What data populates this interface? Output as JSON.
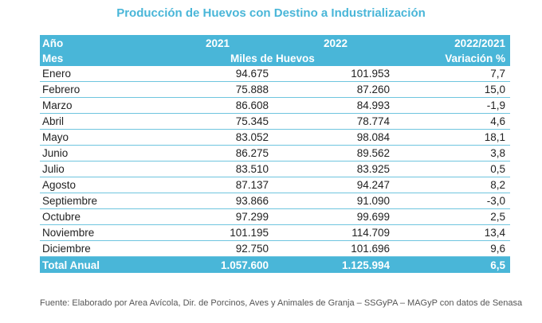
{
  "title": "Producción de Huevos con Destino a Industrialización",
  "header": {
    "row1": [
      "Año",
      "2021",
      "2022",
      "2022/2021"
    ],
    "row2": {
      "mes": "Mes",
      "unidad": "Miles de Huevos",
      "variacion": "Variación %"
    }
  },
  "rows": [
    {
      "mes": "Enero",
      "v2021": "94.675",
      "v2022": "101.953",
      "var": "7,7"
    },
    {
      "mes": "Febrero",
      "v2021": "75.888",
      "v2022": "87.260",
      "var": "15,0"
    },
    {
      "mes": "Marzo",
      "v2021": "86.608",
      "v2022": "84.993",
      "var": "-1,9"
    },
    {
      "mes": "Abril",
      "v2021": "75.345",
      "v2022": "78.774",
      "var": "4,6"
    },
    {
      "mes": "Mayo",
      "v2021": "83.052",
      "v2022": "98.084",
      "var": "18,1"
    },
    {
      "mes": "Junio",
      "v2021": "86.275",
      "v2022": "89.562",
      "var": "3,8"
    },
    {
      "mes": "Julio",
      "v2021": "83.510",
      "v2022": "83.925",
      "var": "0,5"
    },
    {
      "mes": "Agosto",
      "v2021": "87.137",
      "v2022": "94.247",
      "var": "8,2"
    },
    {
      "mes": "Septiembre",
      "v2021": "93.866",
      "v2022": "91.090",
      "var": "-3,0"
    },
    {
      "mes": "Octubre",
      "v2021": "97.299",
      "v2022": "99.699",
      "var": "2,5"
    },
    {
      "mes": "Noviembre",
      "v2021": "101.195",
      "v2022": "114.709",
      "var": "13,4"
    },
    {
      "mes": "Diciembre",
      "v2021": "92.750",
      "v2022": "101.696",
      "var": "9,6"
    }
  ],
  "total": {
    "mes": "Total Anual",
    "v2021": "1.057.600",
    "v2022": "1.125.994",
    "var": "6,5"
  },
  "source": "Fuente: Elaborado por Area Avícola, Dir. de Porcinos, Aves y Animales de Granja – SSGyPA – MAGyP con datos de Senasa",
  "colors": {
    "accent": "#49b6d8",
    "text": "#222222"
  }
}
